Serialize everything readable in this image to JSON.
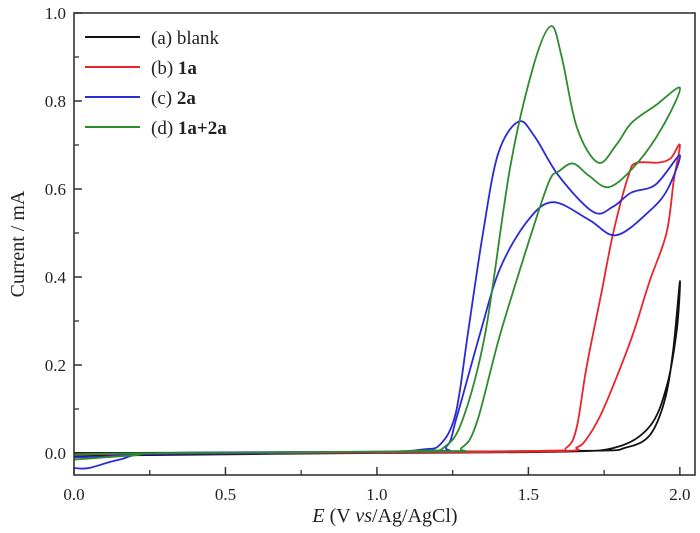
{
  "chart_data": {
    "type": "line",
    "title": "",
    "xlabel": {
      "prefix": "E",
      "mid": " (V ",
      "italic": "vs",
      "suffix": "/Ag/AgCl)"
    },
    "ylabel": "Current / mA",
    "xlim": [
      0,
      2.05
    ],
    "ylim": [
      -0.05,
      1.0
    ],
    "xticks": [
      "0.0",
      "0.5",
      "1.0",
      "1.5",
      "2.0"
    ],
    "yticks": [
      "0.0",
      "0.2",
      "0.4",
      "0.6",
      "0.8",
      "1.0"
    ],
    "grid": false,
    "legend_placement": "top-left",
    "series": [
      {
        "name": "(a) blank",
        "label_plain": "(a) blank",
        "label_bold": "",
        "color": "#111111",
        "points": [
          [
            0,
            0
          ],
          [
            1.0,
            0.002
          ],
          [
            1.7,
            0.005
          ],
          [
            1.82,
            0.012
          ],
          [
            1.9,
            0.04
          ],
          [
            1.95,
            0.12
          ],
          [
            1.978,
            0.234
          ],
          [
            2.0,
            0.39
          ],
          [
            1.99,
            0.28
          ],
          [
            1.956,
            0.15
          ],
          [
            1.9,
            0.06
          ],
          [
            1.79,
            0.013
          ],
          [
            1.6,
            0.003
          ],
          [
            1.0,
            0
          ],
          [
            0.2,
            -0.005
          ],
          [
            0,
            -0.008
          ]
        ]
      },
      {
        "name": "(b) 1a",
        "label_plain": "(b) ",
        "label_bold": "1a",
        "color": "#e8252b",
        "points": [
          [
            0,
            -0.003
          ],
          [
            1.0,
            0.002
          ],
          [
            1.55,
            0.005
          ],
          [
            1.627,
            0.013
          ],
          [
            1.66,
            0.06
          ],
          [
            1.692,
            0.196
          ],
          [
            1.74,
            0.36
          ],
          [
            1.78,
            0.5
          ],
          [
            1.83,
            0.63
          ],
          [
            1.856,
            0.659
          ],
          [
            1.93,
            0.66
          ],
          [
            1.97,
            0.67
          ],
          [
            2.0,
            0.7
          ],
          [
            1.98,
            0.62
          ],
          [
            1.956,
            0.5
          ],
          [
            1.9,
            0.39
          ],
          [
            1.846,
            0.272
          ],
          [
            1.79,
            0.17
          ],
          [
            1.736,
            0.083
          ],
          [
            1.69,
            0.03
          ],
          [
            1.66,
            0.013
          ],
          [
            1.6,
            0.004
          ],
          [
            1.0,
            0.001
          ],
          [
            0,
            -0.003
          ]
        ]
      },
      {
        "name": "(c) 2a",
        "label_plain": "(c) ",
        "label_bold": "2a",
        "color": "#2a2ad8",
        "points": [
          [
            0,
            -0.034
          ],
          [
            0.05,
            -0.034
          ],
          [
            0.15,
            -0.015
          ],
          [
            0.3,
            0
          ],
          [
            1.0,
            0.003
          ],
          [
            1.15,
            0.008
          ],
          [
            1.21,
            0.02
          ],
          [
            1.26,
            0.09
          ],
          [
            1.3,
            0.27
          ],
          [
            1.35,
            0.5
          ],
          [
            1.4,
            0.68
          ],
          [
            1.467,
            0.753
          ],
          [
            1.52,
            0.72
          ],
          [
            1.6,
            0.63
          ],
          [
            1.714,
            0.548
          ],
          [
            1.78,
            0.56
          ],
          [
            1.84,
            0.592
          ],
          [
            1.92,
            0.61
          ],
          [
            2.0,
            0.677
          ],
          [
            1.96,
            0.6
          ],
          [
            1.9,
            0.55
          ],
          [
            1.79,
            0.495
          ],
          [
            1.7,
            0.53
          ],
          [
            1.583,
            0.57
          ],
          [
            1.5,
            0.53
          ],
          [
            1.407,
            0.42
          ],
          [
            1.34,
            0.27
          ],
          [
            1.264,
            0.083
          ],
          [
            1.23,
            0.015
          ],
          [
            1.15,
            0.004
          ],
          [
            0.3,
            -0.002
          ],
          [
            0.1,
            -0.008
          ],
          [
            0,
            -0.01
          ]
        ]
      },
      {
        "name": "(d) 1a+2a",
        "label_plain": "(d) ",
        "label_bold": "1a+2a",
        "color": "#2e8b2e",
        "points": [
          [
            0,
            -0.015
          ],
          [
            0.2,
            -0.005
          ],
          [
            0.3,
            0
          ],
          [
            1.0,
            0.003
          ],
          [
            1.17,
            0.006
          ],
          [
            1.22,
            0.012
          ],
          [
            1.28,
            0.07
          ],
          [
            1.357,
            0.27
          ],
          [
            1.44,
            0.65
          ],
          [
            1.516,
            0.878
          ],
          [
            1.574,
            0.97
          ],
          [
            1.61,
            0.9
          ],
          [
            1.66,
            0.74
          ],
          [
            1.73,
            0.66
          ],
          [
            1.79,
            0.7
          ],
          [
            1.84,
            0.75
          ],
          [
            1.92,
            0.79
          ],
          [
            2.0,
            0.83
          ],
          [
            1.95,
            0.75
          ],
          [
            1.868,
            0.666
          ],
          [
            1.77,
            0.605
          ],
          [
            1.7,
            0.63
          ],
          [
            1.648,
            0.658
          ],
          [
            1.6,
            0.64
          ],
          [
            1.57,
            0.62
          ],
          [
            1.517,
            0.514
          ],
          [
            1.407,
            0.27
          ],
          [
            1.33,
            0.07
          ],
          [
            1.28,
            0.012
          ],
          [
            1.2,
            0.004
          ],
          [
            0.3,
            0
          ],
          [
            0,
            -0.003
          ]
        ]
      }
    ]
  }
}
